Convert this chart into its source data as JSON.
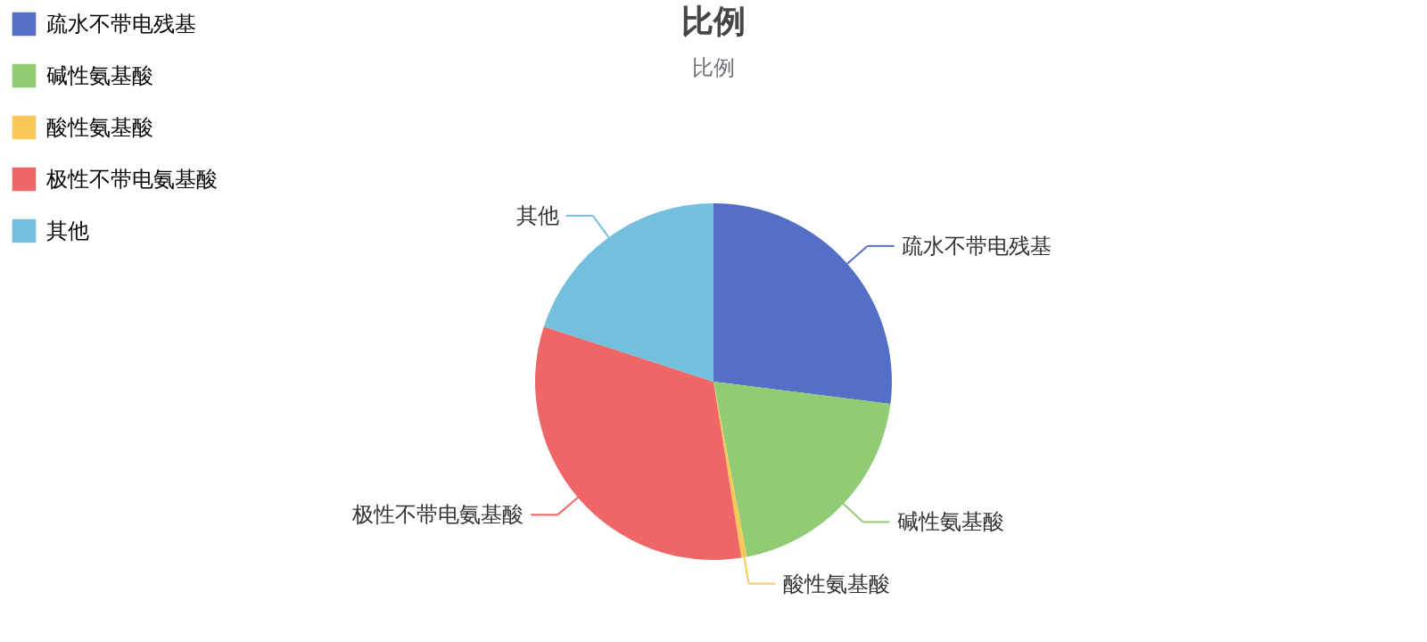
{
  "chart_data": {
    "type": "pie",
    "title": "比例",
    "subtitle": "比例",
    "categories": [
      "疏水不带电残基",
      "碱性氨基酸",
      "酸性氨基酸",
      "极性不带电氨基酸",
      "其他"
    ],
    "values": [
      27,
      20,
      0.5,
      32.5,
      20
    ],
    "colors": [
      "#5470c6",
      "#91cc75",
      "#fac858",
      "#ee6666",
      "#73c0de"
    ],
    "legend": "top left"
  }
}
